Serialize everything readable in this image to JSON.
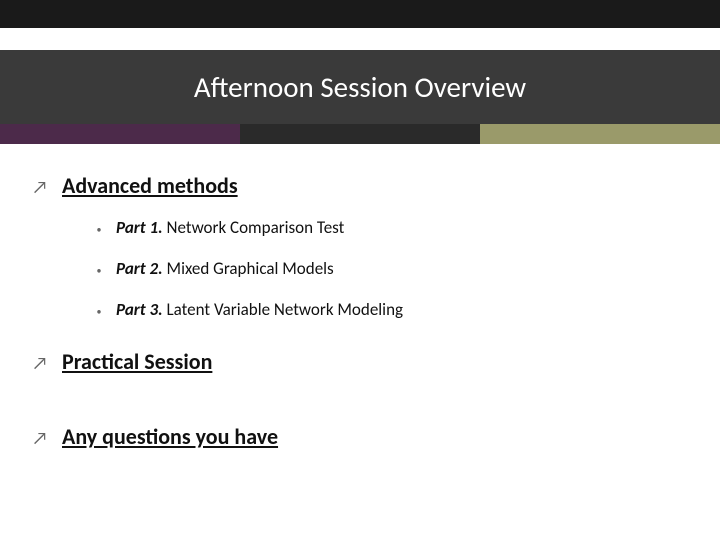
{
  "header": {
    "title": "Afternoon Session Overview",
    "band_color": "#3a3a3a",
    "title_color": "#ffffff",
    "title_fontsize": 29,
    "top_cap_color": "#1a1a1a",
    "accent_colors": [
      "#4c2a4a",
      "#2a2a2a",
      "#9a9a6a"
    ]
  },
  "sections": [
    {
      "title": "Advanced methods",
      "items": [
        {
          "part": "Part 1.",
          "text": " Network Comparison Test"
        },
        {
          "part": "Part 2.",
          "text": " Mixed Graphical Models"
        },
        {
          "part": "Part 3.",
          "text": " Latent Variable Network Modeling"
        }
      ]
    },
    {
      "title": "Practical Session"
    },
    {
      "title": "Any questions you have"
    }
  ],
  "style": {
    "section_title_fontsize": 22,
    "section_title_weight": 700,
    "section_underline": true,
    "subitem_fontsize": 17,
    "arrow_color": "#666666",
    "bullet_color": "#666666",
    "background_color": "#ffffff"
  }
}
